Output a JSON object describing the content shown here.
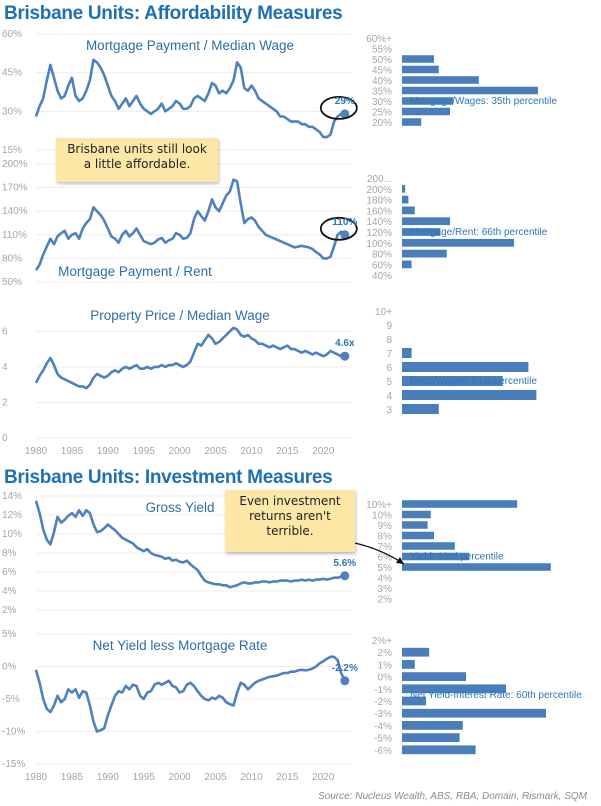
{
  "header": {
    "title_affordability": "Brisbane Units: Affordability Measures",
    "title_investment": "Brisbane Units: Investment Measures"
  },
  "notes": {
    "note1": "Brisbane units still look a little affordable.",
    "note2": "Even investment returns aren't terrible."
  },
  "source": "Source: Nucleus Wealth, ABS, RBA, Domain, Rismark, SQM",
  "colors": {
    "line": "#4f81bd",
    "bar": "#4a7ebb",
    "title": "#1f6fb2",
    "note": "#fde7a7"
  },
  "chart_data": [
    {
      "type": "line",
      "title": "Mortgage Payment / Median Wage",
      "yticks": [
        "15%",
        "30%",
        "45%",
        "60%"
      ],
      "ylim": [
        15,
        60
      ],
      "xlim": [
        1980,
        2024
      ],
      "end_label": "29%",
      "end_point": [
        2023.0,
        29
      ],
      "x": [
        1980.0,
        1980.5,
        1981.0,
        1981.5,
        1982.0,
        1982.5,
        1983.0,
        1983.5,
        1984.0,
        1984.5,
        1985.0,
        1985.5,
        1986.0,
        1986.5,
        1987.0,
        1987.5,
        1988.0,
        1988.5,
        1989.0,
        1989.5,
        1990.0,
        1990.5,
        1991.0,
        1991.5,
        1992.0,
        1992.5,
        1993.0,
        1993.5,
        1994.0,
        1994.5,
        1995.0,
        1995.5,
        1996.0,
        1996.5,
        1997.0,
        1997.5,
        1998.0,
        1998.5,
        1999.0,
        1999.5,
        2000.0,
        2000.5,
        2001.0,
        2001.5,
        2002.0,
        2002.5,
        2003.0,
        2003.5,
        2004.0,
        2004.5,
        2005.0,
        2005.5,
        2006.0,
        2006.5,
        2007.0,
        2007.5,
        2008.0,
        2008.5,
        2009.0,
        2009.5,
        2010.0,
        2010.5,
        2011.0,
        2011.5,
        2012.0,
        2012.5,
        2013.0,
        2013.5,
        2014.0,
        2014.5,
        2015.0,
        2015.5,
        2016.0,
        2016.5,
        2017.0,
        2017.5,
        2018.0,
        2018.5,
        2019.0,
        2019.5,
        2020.0,
        2020.5,
        2021.0,
        2021.5,
        2022.0,
        2022.5,
        2023.0
      ],
      "y": [
        28,
        32,
        35,
        42,
        48,
        43,
        38,
        35,
        36,
        40,
        43,
        36,
        34,
        35,
        38,
        42,
        50,
        49,
        47,
        44,
        40,
        36,
        34,
        31,
        33,
        35,
        32,
        34,
        36,
        33,
        31,
        30,
        29,
        30,
        31,
        33,
        30,
        31,
        32,
        34,
        33,
        31,
        31,
        32,
        35,
        36,
        35,
        34,
        37,
        41,
        40,
        37,
        38,
        37,
        39,
        42,
        49,
        47,
        39,
        38,
        40,
        38,
        35,
        34,
        33,
        32,
        31,
        30,
        28,
        28,
        27,
        26,
        26,
        26,
        25,
        25,
        24,
        24,
        23,
        22,
        20,
        20,
        21,
        26,
        28,
        29,
        29
      ]
    },
    {
      "type": "line",
      "title": "Mortgage Payment / Rent",
      "yticks": [
        "50%",
        "80%",
        "110%",
        "140%",
        "170%",
        "200%"
      ],
      "ylim": [
        50,
        200
      ],
      "xlim": [
        1980,
        2024
      ],
      "end_label": "110%",
      "end_point": [
        2023.0,
        110
      ],
      "x": [
        1980.0,
        1980.5,
        1981.0,
        1981.5,
        1982.0,
        1982.5,
        1983.0,
        1983.5,
        1984.0,
        1984.5,
        1985.0,
        1985.5,
        1986.0,
        1986.5,
        1987.0,
        1987.5,
        1988.0,
        1988.5,
        1989.0,
        1989.5,
        1990.0,
        1990.5,
        1991.0,
        1991.5,
        1992.0,
        1992.5,
        1993.0,
        1993.5,
        1994.0,
        1994.5,
        1995.0,
        1995.5,
        1996.0,
        1996.5,
        1997.0,
        1997.5,
        1998.0,
        1998.5,
        1999.0,
        1999.5,
        2000.0,
        2000.5,
        2001.0,
        2001.5,
        2002.0,
        2002.5,
        2003.0,
        2003.5,
        2004.0,
        2004.5,
        2005.0,
        2005.5,
        2006.0,
        2006.5,
        2007.0,
        2007.5,
        2008.0,
        2008.5,
        2009.0,
        2009.5,
        2010.0,
        2010.5,
        2011.0,
        2011.5,
        2012.0,
        2012.5,
        2013.0,
        2013.5,
        2014.0,
        2014.5,
        2015.0,
        2015.5,
        2016.0,
        2016.5,
        2017.0,
        2017.5,
        2018.0,
        2018.5,
        2019.0,
        2019.5,
        2020.0,
        2020.5,
        2021.0,
        2021.5,
        2022.0,
        2022.5,
        2023.0
      ],
      "y": [
        65,
        72,
        85,
        95,
        105,
        98,
        108,
        112,
        115,
        105,
        110,
        112,
        105,
        118,
        125,
        130,
        145,
        140,
        135,
        128,
        118,
        108,
        105,
        100,
        110,
        115,
        108,
        112,
        118,
        110,
        102,
        100,
        98,
        100,
        104,
        106,
        100,
        103,
        105,
        112,
        110,
        105,
        106,
        112,
        130,
        140,
        134,
        128,
        140,
        155,
        145,
        140,
        150,
        160,
        165,
        180,
        178,
        150,
        125,
        130,
        132,
        128,
        120,
        115,
        110,
        108,
        106,
        104,
        102,
        100,
        98,
        96,
        94,
        95,
        96,
        95,
        94,
        92,
        88,
        85,
        80,
        80,
        82,
        95,
        110,
        114,
        110
      ]
    },
    {
      "type": "line",
      "title": "Property Price / Median Wage",
      "yticks": [
        "0",
        "2",
        "4",
        "6"
      ],
      "ylim": [
        0,
        7.2
      ],
      "xlim": [
        1980,
        2024
      ],
      "xticks": [
        "1980",
        "1985",
        "1990",
        "1995",
        "2000",
        "2005",
        "2010",
        "2015",
        "2020"
      ],
      "end_label": "4.6x",
      "end_point": [
        2023.0,
        4.6
      ],
      "x": [
        1980.0,
        1980.5,
        1981.0,
        1981.5,
        1982.0,
        1982.5,
        1983.0,
        1983.5,
        1984.0,
        1984.5,
        1985.0,
        1985.5,
        1986.0,
        1986.5,
        1987.0,
        1987.5,
        1988.0,
        1988.5,
        1989.0,
        1989.5,
        1990.0,
        1990.5,
        1991.0,
        1991.5,
        1992.0,
        1992.5,
        1993.0,
        1993.5,
        1994.0,
        1994.5,
        1995.0,
        1995.5,
        1996.0,
        1996.5,
        1997.0,
        1997.5,
        1998.0,
        1998.5,
        1999.0,
        1999.5,
        2000.0,
        2000.5,
        2001.0,
        2001.5,
        2002.0,
        2002.5,
        2003.0,
        2003.5,
        2004.0,
        2004.5,
        2005.0,
        2005.5,
        2006.0,
        2006.5,
        2007.0,
        2007.5,
        2008.0,
        2008.5,
        2009.0,
        2009.5,
        2010.0,
        2010.5,
        2011.0,
        2011.5,
        2012.0,
        2012.5,
        2013.0,
        2013.5,
        2014.0,
        2014.5,
        2015.0,
        2015.5,
        2016.0,
        2016.5,
        2017.0,
        2017.5,
        2018.0,
        2018.5,
        2019.0,
        2019.5,
        2020.0,
        2020.5,
        2021.0,
        2021.5,
        2022.0,
        2022.5,
        2023.0
      ],
      "y": [
        3.1,
        3.5,
        3.8,
        4.2,
        4.5,
        4.1,
        3.6,
        3.4,
        3.3,
        3.2,
        3.1,
        3.0,
        2.9,
        2.9,
        2.8,
        3.0,
        3.4,
        3.6,
        3.5,
        3.4,
        3.5,
        3.7,
        3.8,
        3.7,
        3.9,
        4.0,
        3.9,
        4.0,
        4.1,
        3.9,
        3.9,
        4.0,
        3.9,
        4.0,
        4.0,
        4.1,
        4.0,
        4.1,
        4.1,
        4.2,
        4.1,
        4.0,
        4.1,
        4.3,
        4.8,
        5.3,
        5.2,
        5.5,
        5.8,
        5.6,
        5.3,
        5.4,
        5.6,
        5.8,
        6.0,
        6.2,
        6.1,
        5.8,
        5.7,
        5.8,
        5.6,
        5.5,
        5.3,
        5.3,
        5.2,
        5.1,
        5.2,
        5.1,
        5.0,
        5.1,
        5.2,
        5.0,
        5.0,
        4.9,
        4.8,
        4.9,
        4.8,
        4.7,
        4.8,
        4.7,
        4.6,
        4.7,
        4.9,
        4.8,
        4.7,
        4.6,
        4.6
      ]
    },
    {
      "type": "line",
      "title": "Gross Yield",
      "yticks": [
        "2%",
        "4%",
        "6%",
        "8%",
        "10%",
        "12%",
        "14%"
      ],
      "ylim": [
        2,
        14
      ],
      "xlim": [
        1980,
        2024
      ],
      "end_label": "5.6%",
      "end_point": [
        2023.0,
        5.6
      ],
      "x": [
        1980.0,
        1980.5,
        1981.0,
        1981.5,
        1982.0,
        1982.5,
        1983.0,
        1983.5,
        1984.0,
        1984.5,
        1985.0,
        1985.5,
        1986.0,
        1986.5,
        1987.0,
        1987.5,
        1988.0,
        1988.5,
        1989.0,
        1989.5,
        1990.0,
        1990.5,
        1991.0,
        1991.5,
        1992.0,
        1992.5,
        1993.0,
        1993.5,
        1994.0,
        1994.5,
        1995.0,
        1995.5,
        1996.0,
        1996.5,
        1997.0,
        1997.5,
        1998.0,
        1998.5,
        1999.0,
        1999.5,
        2000.0,
        2000.5,
        2001.0,
        2001.5,
        2002.0,
        2002.5,
        2003.0,
        2003.5,
        2004.0,
        2004.5,
        2005.0,
        2005.5,
        2006.0,
        2006.5,
        2007.0,
        2007.5,
        2008.0,
        2008.5,
        2009.0,
        2009.5,
        2010.0,
        2010.5,
        2011.0,
        2011.5,
        2012.0,
        2012.5,
        2013.0,
        2013.5,
        2014.0,
        2014.5,
        2015.0,
        2015.5,
        2016.0,
        2016.5,
        2017.0,
        2017.5,
        2018.0,
        2018.5,
        2019.0,
        2019.5,
        2020.0,
        2020.5,
        2021.0,
        2021.5,
        2022.0,
        2022.5,
        2023.0
      ],
      "y": [
        13.5,
        12.2,
        10.5,
        9.4,
        8.9,
        10.2,
        11.8,
        11.2,
        11.5,
        11.9,
        12.2,
        11.8,
        12.5,
        11.9,
        12.5,
        12.2,
        11.0,
        10.2,
        10.3,
        10.6,
        11.0,
        10.7,
        10.4,
        10.0,
        9.6,
        9.4,
        9.2,
        9.0,
        8.6,
        8.4,
        8.2,
        8.4,
        8.0,
        7.8,
        7.7,
        7.6,
        7.4,
        7.5,
        7.2,
        7.3,
        7.1,
        7.0,
        7.2,
        6.8,
        6.5,
        6.2,
        5.6,
        5.1,
        4.9,
        4.8,
        4.7,
        4.7,
        4.6,
        4.6,
        4.4,
        4.5,
        4.6,
        4.8,
        4.9,
        4.8,
        4.8,
        4.9,
        4.9,
        5.0,
        5.0,
        4.9,
        5.0,
        5.0,
        5.1,
        5.1,
        5.1,
        5.0,
        5.1,
        5.1,
        5.2,
        5.1,
        5.2,
        5.1,
        5.2,
        5.2,
        5.3,
        5.2,
        5.3,
        5.4,
        5.4,
        5.5,
        5.6
      ]
    },
    {
      "type": "line",
      "title": "Net Yield less Mortgage Rate",
      "yticks": [
        "-15%",
        "-10%",
        "-5%",
        "0%",
        "5%"
      ],
      "ylim": [
        -15,
        5
      ],
      "xlim": [
        1980,
        2024
      ],
      "xticks": [
        "1980",
        "1985",
        "1990",
        "1995",
        "2000",
        "2005",
        "2010",
        "2015",
        "2020"
      ],
      "end_label": "-2.2%",
      "end_point": [
        2023.0,
        -2.2
      ],
      "x": [
        1980.0,
        1980.5,
        1981.0,
        1981.5,
        1982.0,
        1982.5,
        1983.0,
        1983.5,
        1984.0,
        1984.5,
        1985.0,
        1985.5,
        1986.0,
        1986.5,
        1987.0,
        1987.5,
        1988.0,
        1988.5,
        1989.0,
        1989.5,
        1990.0,
        1990.5,
        1991.0,
        1991.5,
        1992.0,
        1992.5,
        1993.0,
        1993.5,
        1994.0,
        1994.5,
        1995.0,
        1995.5,
        1996.0,
        1996.5,
        1997.0,
        1997.5,
        1998.0,
        1998.5,
        1999.0,
        1999.5,
        2000.0,
        2000.5,
        2001.0,
        2001.5,
        2002.0,
        2002.5,
        2003.0,
        2003.5,
        2004.0,
        2004.5,
        2005.0,
        2005.5,
        2006.0,
        2006.5,
        2007.0,
        2007.5,
        2008.0,
        2008.5,
        2009.0,
        2009.5,
        2010.0,
        2010.5,
        2011.0,
        2011.5,
        2012.0,
        2012.5,
        2013.0,
        2013.5,
        2014.0,
        2014.5,
        2015.0,
        2015.5,
        2016.0,
        2016.5,
        2017.0,
        2017.5,
        2018.0,
        2018.5,
        2019.0,
        2019.5,
        2020.0,
        2020.5,
        2021.0,
        2021.5,
        2022.0,
        2022.5,
        2023.0
      ],
      "y": [
        -0.5,
        -2.5,
        -5.0,
        -6.5,
        -7.0,
        -6.0,
        -4.5,
        -5.5,
        -5.0,
        -3.5,
        -4.0,
        -3.5,
        -4.8,
        -3.8,
        -4.0,
        -6.0,
        -8.5,
        -10.0,
        -9.8,
        -9.5,
        -7.5,
        -6.0,
        -4.5,
        -3.8,
        -4.0,
        -3.0,
        -3.5,
        -2.8,
        -3.0,
        -4.5,
        -5.0,
        -4.0,
        -3.8,
        -2.8,
        -2.5,
        -2.8,
        -2.5,
        -2.2,
        -3.0,
        -3.2,
        -4.0,
        -3.8,
        -2.8,
        -2.5,
        -3.0,
        -3.8,
        -4.5,
        -5.0,
        -5.2,
        -4.8,
        -5.0,
        -4.5,
        -4.8,
        -5.5,
        -5.8,
        -6.0,
        -4.0,
        -2.5,
        -2.8,
        -3.5,
        -3.0,
        -2.5,
        -2.2,
        -2.0,
        -1.8,
        -1.6,
        -1.5,
        -1.4,
        -1.2,
        -1.0,
        -1.0,
        -0.8,
        -0.8,
        -0.6,
        -0.5,
        -0.6,
        -0.5,
        -0.3,
        0.0,
        0.5,
        0.8,
        1.2,
        1.5,
        1.5,
        1.0,
        -1.0,
        -2.2
      ]
    },
    {
      "type": "bar",
      "orientation": "horizontal",
      "title": "Mortgage/Wages: 35th percentile",
      "categories": [
        "60%+",
        "55%",
        "50%",
        "45%",
        "40%",
        "35%",
        "30%",
        "25%",
        "20%"
      ],
      "values": [
        0,
        0,
        2.0,
        2.3,
        4.8,
        8.5,
        3.2,
        3.0,
        1.2
      ],
      "xlim": [
        0,
        10
      ]
    },
    {
      "type": "bar",
      "orientation": "horizontal",
      "title": "Mortgage/Rent: 66th percentile",
      "categories": [
        "200...",
        "200%",
        "180%",
        "160%",
        "140%",
        "120%",
        "100%",
        "80%",
        "60%",
        "40%"
      ],
      "values": [
        0,
        0.2,
        0.4,
        0.8,
        3.0,
        2.4,
        7.0,
        2.8,
        0.6,
        0
      ],
      "xlim": [
        0,
        10
      ]
    },
    {
      "type": "bar",
      "orientation": "horizontal",
      "title": "Price/Wages: 61st percentile",
      "categories": [
        "10+",
        "9",
        "8",
        "7",
        "6",
        "5",
        "4",
        "3"
      ],
      "values": [
        0,
        0,
        0,
        0.6,
        7.9,
        6.3,
        8.4,
        2.3
      ],
      "xlim": [
        0,
        10
      ]
    },
    {
      "type": "bar",
      "orientation": "horizontal",
      "title": "Yield: 43rd percentile",
      "categories": [
        "10%+",
        "10%",
        "9%",
        "8%",
        "7%",
        "6%",
        "5%",
        "4%",
        "3%",
        "2%"
      ],
      "values": [
        7.2,
        1.8,
        1.6,
        2.0,
        3.3,
        4.2,
        9.3,
        0,
        0,
        0
      ],
      "xlim": [
        0,
        10
      ]
    },
    {
      "type": "bar",
      "orientation": "horizontal",
      "title": "Net Yield-Interest Rate: 60th percentile",
      "categories": [
        "2%+",
        "2%",
        "1%",
        "0%",
        "-1%",
        "-2%",
        "-3%",
        "-4%",
        "-5%",
        "-6%"
      ],
      "values": [
        0,
        1.7,
        0.8,
        4.0,
        6.5,
        1.5,
        9.0,
        3.8,
        3.6,
        4.6
      ],
      "xlim": [
        0,
        10
      ]
    }
  ]
}
